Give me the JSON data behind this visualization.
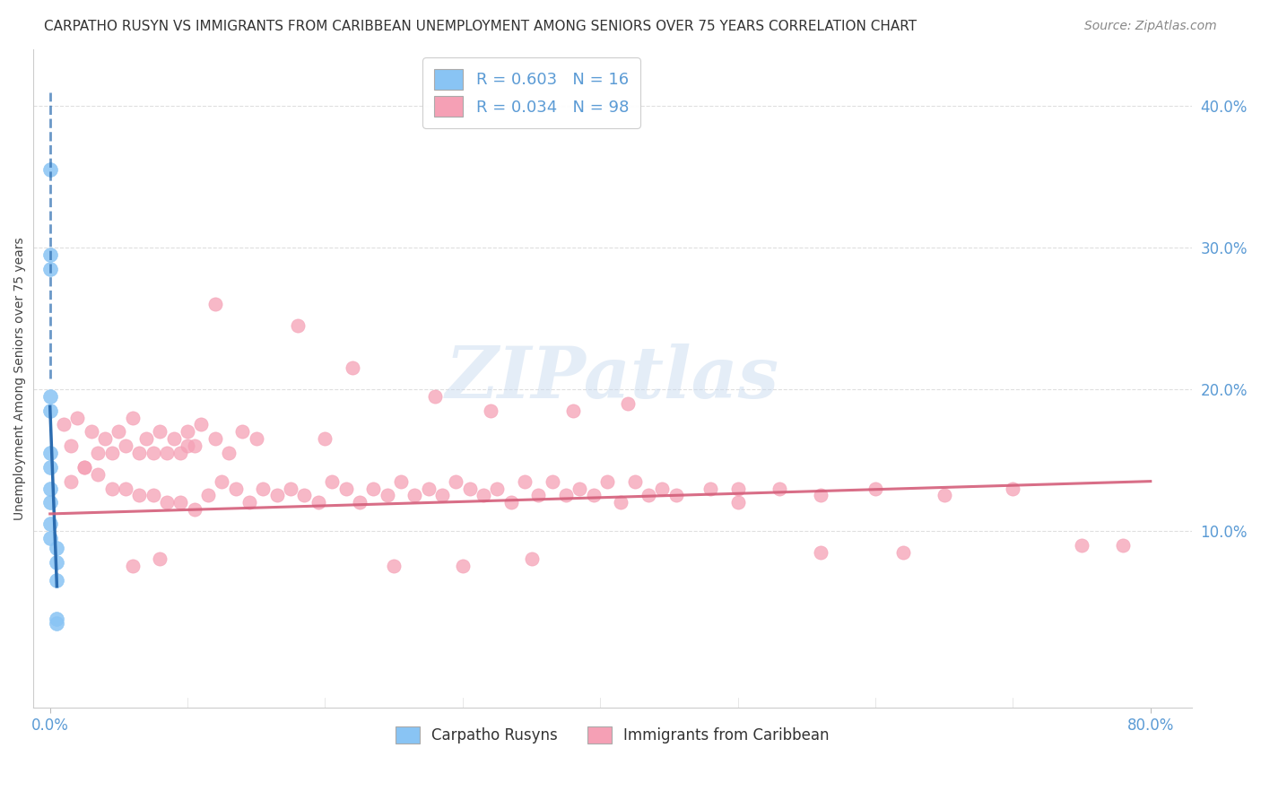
{
  "title": "CARPATHO RUSYN VS IMMIGRANTS FROM CARIBBEAN UNEMPLOYMENT AMONG SENIORS OVER 75 YEARS CORRELATION CHART",
  "source": "Source: ZipAtlas.com",
  "ylabel": "Unemployment Among Seniors over 75 years",
  "legend1_label": "R = 0.603   N = 16",
  "legend2_label": "R = 0.034   N = 98",
  "legend_label1": "Carpatho Rusyns",
  "legend_label2": "Immigrants from Caribbean",
  "blue_color": "#89c4f4",
  "pink_color": "#f5a0b5",
  "trendline_blue_color": "#2b6cb0",
  "trendline_pink_color": "#d45e7a",
  "grid_color": "#d8d8d8",
  "watermark_color": "#c5d8ee",
  "blue_points_x": [
    0.0,
    0.0,
    0.0,
    0.0,
    0.0,
    0.0,
    0.0,
    0.0,
    0.0,
    0.0,
    0.0,
    0.005,
    0.005,
    0.005,
    0.005,
    0.005
  ],
  "blue_points_y": [
    0.355,
    0.295,
    0.285,
    0.195,
    0.185,
    0.155,
    0.145,
    0.13,
    0.12,
    0.105,
    0.095,
    0.088,
    0.078,
    0.065,
    0.038,
    0.035
  ],
  "pink_points_x": [
    0.01,
    0.015,
    0.02,
    0.025,
    0.03,
    0.035,
    0.04,
    0.045,
    0.05,
    0.055,
    0.06,
    0.065,
    0.07,
    0.075,
    0.08,
    0.085,
    0.09,
    0.095,
    0.1,
    0.105,
    0.11,
    0.12,
    0.13,
    0.14,
    0.015,
    0.025,
    0.035,
    0.045,
    0.055,
    0.065,
    0.075,
    0.085,
    0.095,
    0.105,
    0.115,
    0.125,
    0.135,
    0.145,
    0.155,
    0.165,
    0.175,
    0.185,
    0.195,
    0.205,
    0.215,
    0.225,
    0.235,
    0.245,
    0.255,
    0.265,
    0.275,
    0.285,
    0.295,
    0.305,
    0.315,
    0.325,
    0.335,
    0.345,
    0.355,
    0.365,
    0.375,
    0.385,
    0.395,
    0.405,
    0.415,
    0.425,
    0.435,
    0.445,
    0.455,
    0.48,
    0.5,
    0.53,
    0.56,
    0.6,
    0.65,
    0.7,
    0.75,
    0.78,
    0.12,
    0.18,
    0.22,
    0.28,
    0.32,
    0.38,
    0.42,
    0.5,
    0.56,
    0.62,
    0.25,
    0.3,
    0.35,
    0.2,
    0.15,
    0.1,
    0.08,
    0.06
  ],
  "pink_points_y": [
    0.175,
    0.16,
    0.18,
    0.145,
    0.17,
    0.155,
    0.165,
    0.155,
    0.17,
    0.16,
    0.18,
    0.155,
    0.165,
    0.155,
    0.17,
    0.155,
    0.165,
    0.155,
    0.17,
    0.16,
    0.175,
    0.165,
    0.155,
    0.17,
    0.135,
    0.145,
    0.14,
    0.13,
    0.13,
    0.125,
    0.125,
    0.12,
    0.12,
    0.115,
    0.125,
    0.135,
    0.13,
    0.12,
    0.13,
    0.125,
    0.13,
    0.125,
    0.12,
    0.135,
    0.13,
    0.12,
    0.13,
    0.125,
    0.135,
    0.125,
    0.13,
    0.125,
    0.135,
    0.13,
    0.125,
    0.13,
    0.12,
    0.135,
    0.125,
    0.135,
    0.125,
    0.13,
    0.125,
    0.135,
    0.12,
    0.135,
    0.125,
    0.13,
    0.125,
    0.13,
    0.13,
    0.13,
    0.125,
    0.13,
    0.125,
    0.13,
    0.09,
    0.09,
    0.26,
    0.245,
    0.215,
    0.195,
    0.185,
    0.185,
    0.19,
    0.12,
    0.085,
    0.085,
    0.075,
    0.075,
    0.08,
    0.165,
    0.165,
    0.16,
    0.08,
    0.075
  ],
  "xmin": 0.0,
  "xmax": 0.8,
  "ymin": 0.0,
  "ymax": 0.42,
  "xtick_positions": [
    0.0,
    0.8
  ],
  "xtick_labels": [
    "0.0%",
    "80.0%"
  ],
  "ytick_positions": [
    0.1,
    0.2,
    0.3,
    0.4
  ],
  "ytick_labels": [
    "10.0%",
    "20.0%",
    "30.0%",
    "40.0%"
  ],
  "tick_color": "#5b9bd5",
  "title_fontsize": 11,
  "source_fontsize": 10,
  "axis_label_fontsize": 10,
  "tick_fontsize": 12,
  "legend_fontsize": 13,
  "watermark_fontsize": 58
}
